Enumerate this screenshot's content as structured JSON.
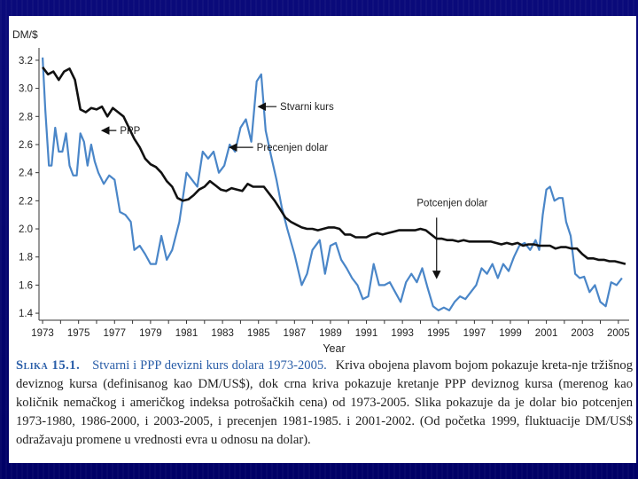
{
  "chart_data": {
    "type": "line",
    "ylabel": "DM/$",
    "xlabel": "Year",
    "ylim": [
      1.35,
      3.25
    ],
    "xlim": [
      1972.8,
      2005.6
    ],
    "yticks": [
      1.4,
      1.6,
      1.8,
      2.0,
      2.2,
      2.4,
      2.6,
      2.8,
      3.0,
      3.2
    ],
    "ytick_labels": [
      "1.4",
      "1.6",
      "1.8",
      "2.0",
      "2.2",
      "2.4",
      "2.6",
      "2.8",
      "3.0",
      "3.2"
    ],
    "xticks": [
      1973,
      1975,
      1977,
      1979,
      1981,
      1983,
      1985,
      1987,
      1989,
      1991,
      1993,
      1995,
      1997,
      1999,
      2001,
      2003,
      2005
    ],
    "xtick_labels": [
      "1973",
      "1975",
      "1977",
      "1979",
      "1981",
      "1983",
      "1985",
      "1987",
      "1989",
      "1991",
      "1993",
      "1995",
      "1997",
      "1999",
      "2001",
      "2003",
      "2005"
    ],
    "series": [
      {
        "name": "Stvarni kurs",
        "color": "#4a86c8",
        "x": [
          1973.0,
          1973.15,
          1973.35,
          1973.5,
          1973.7,
          1973.9,
          1974.1,
          1974.3,
          1974.5,
          1974.7,
          1974.9,
          1975.1,
          1975.3,
          1975.5,
          1975.7,
          1975.9,
          1976.1,
          1976.4,
          1976.7,
          1977.0,
          1977.3,
          1977.6,
          1977.9,
          1978.1,
          1978.4,
          1978.7,
          1979.0,
          1979.3,
          1979.6,
          1979.9,
          1980.2,
          1980.6,
          1981.0,
          1981.3,
          1981.6,
          1981.9,
          1982.2,
          1982.5,
          1982.8,
          1983.1,
          1983.4,
          1983.7,
          1984.0,
          1984.3,
          1984.6,
          1984.9,
          1985.15,
          1985.4,
          1985.7,
          1986.0,
          1986.3,
          1986.6,
          1987.0,
          1987.4,
          1987.7,
          1988.0,
          1988.4,
          1988.7,
          1989.0,
          1989.3,
          1989.6,
          1989.9,
          1990.2,
          1990.5,
          1990.8,
          1991.1,
          1991.4,
          1991.7,
          1992.0,
          1992.3,
          1992.6,
          1992.9,
          1993.2,
          1993.5,
          1993.8,
          1994.1,
          1994.4,
          1994.7,
          1995.0,
          1995.3,
          1995.6,
          1995.9,
          1996.2,
          1996.5,
          1996.8,
          1997.1,
          1997.4,
          1997.7,
          1998.0,
          1998.3,
          1998.6,
          1998.9,
          1999.2,
          1999.5,
          1999.8,
          2000.1,
          2000.4,
          2000.6,
          2000.8,
          2001.0,
          2001.2,
          2001.45,
          2001.7,
          2001.9,
          2002.1,
          2002.35,
          2002.6,
          2002.85,
          2003.1,
          2003.4,
          2003.7,
          2004.0,
          2004.3,
          2004.6,
          2004.9,
          2005.2
        ],
        "y": [
          3.22,
          2.85,
          2.45,
          2.45,
          2.72,
          2.55,
          2.55,
          2.68,
          2.45,
          2.38,
          2.38,
          2.68,
          2.62,
          2.45,
          2.6,
          2.48,
          2.4,
          2.32,
          2.38,
          2.35,
          2.12,
          2.1,
          2.05,
          1.85,
          1.88,
          1.82,
          1.75,
          1.75,
          1.95,
          1.78,
          1.85,
          2.05,
          2.4,
          2.35,
          2.3,
          2.55,
          2.5,
          2.55,
          2.4,
          2.45,
          2.6,
          2.55,
          2.72,
          2.78,
          2.62,
          3.05,
          3.1,
          2.7,
          2.52,
          2.35,
          2.15,
          2.0,
          1.82,
          1.6,
          1.68,
          1.85,
          1.92,
          1.68,
          1.88,
          1.9,
          1.78,
          1.72,
          1.65,
          1.6,
          1.5,
          1.52,
          1.75,
          1.6,
          1.6,
          1.62,
          1.55,
          1.48,
          1.62,
          1.68,
          1.62,
          1.72,
          1.58,
          1.45,
          1.42,
          1.44,
          1.42,
          1.48,
          1.52,
          1.5,
          1.55,
          1.6,
          1.72,
          1.68,
          1.75,
          1.65,
          1.75,
          1.7,
          1.8,
          1.88,
          1.9,
          1.85,
          1.92,
          1.85,
          2.1,
          2.28,
          2.3,
          2.2,
          2.22,
          2.22,
          2.05,
          1.95,
          1.68,
          1.65,
          1.66,
          1.55,
          1.6,
          1.48,
          1.45,
          1.62,
          1.6,
          1.65
        ]
      },
      {
        "name": "PPP",
        "color": "#111111",
        "x": [
          1973.0,
          1973.3,
          1973.6,
          1973.9,
          1974.2,
          1974.5,
          1974.8,
          1975.1,
          1975.4,
          1975.7,
          1976.0,
          1976.3,
          1976.6,
          1976.9,
          1977.2,
          1977.5,
          1977.8,
          1978.1,
          1978.4,
          1978.7,
          1979.0,
          1979.3,
          1979.6,
          1979.9,
          1980.2,
          1980.5,
          1980.8,
          1981.1,
          1981.4,
          1981.7,
          1982.0,
          1982.3,
          1982.6,
          1982.9,
          1983.2,
          1983.5,
          1983.8,
          1984.1,
          1984.4,
          1984.7,
          1985.0,
          1985.3,
          1985.6,
          1985.9,
          1986.2,
          1986.5,
          1986.8,
          1987.1,
          1987.4,
          1987.7,
          1988.0,
          1988.3,
          1988.6,
          1988.9,
          1989.2,
          1989.5,
          1989.8,
          1990.1,
          1990.4,
          1990.7,
          1991.0,
          1991.3,
          1991.6,
          1991.9,
          1992.2,
          1992.5,
          1992.8,
          1993.1,
          1993.4,
          1993.7,
          1994.0,
          1994.3,
          1994.6,
          1994.9,
          1995.2,
          1995.5,
          1995.8,
          1996.1,
          1996.4,
          1996.7,
          1997.0,
          1997.3,
          1997.6,
          1997.9,
          1998.2,
          1998.5,
          1998.8,
          1999.1,
          1999.4,
          1999.7,
          2000.0,
          2000.3,
          2000.6,
          2000.9,
          2001.2,
          2001.5,
          2001.8,
          2002.1,
          2002.4,
          2002.7,
          2003.0,
          2003.3,
          2003.6,
          2003.9,
          2004.2,
          2004.5,
          2004.8,
          2005.1,
          2005.4
        ],
        "y": [
          3.15,
          3.1,
          3.12,
          3.06,
          3.12,
          3.14,
          3.06,
          2.85,
          2.83,
          2.86,
          2.85,
          2.87,
          2.8,
          2.86,
          2.83,
          2.8,
          2.72,
          2.64,
          2.58,
          2.5,
          2.46,
          2.44,
          2.4,
          2.34,
          2.3,
          2.22,
          2.2,
          2.21,
          2.24,
          2.28,
          2.3,
          2.34,
          2.31,
          2.28,
          2.27,
          2.29,
          2.28,
          2.27,
          2.32,
          2.3,
          2.3,
          2.3,
          2.25,
          2.2,
          2.14,
          2.08,
          2.05,
          2.03,
          2.01,
          2.0,
          2.0,
          1.99,
          2.0,
          2.01,
          2.01,
          2.0,
          1.96,
          1.96,
          1.94,
          1.94,
          1.94,
          1.96,
          1.97,
          1.96,
          1.97,
          1.98,
          1.99,
          1.99,
          1.99,
          1.99,
          2.0,
          1.99,
          1.96,
          1.93,
          1.93,
          1.92,
          1.92,
          1.91,
          1.92,
          1.91,
          1.91,
          1.91,
          1.91,
          1.91,
          1.9,
          1.89,
          1.9,
          1.89,
          1.9,
          1.88,
          1.89,
          1.89,
          1.88,
          1.88,
          1.88,
          1.86,
          1.87,
          1.87,
          1.86,
          1.86,
          1.82,
          1.79,
          1.79,
          1.78,
          1.78,
          1.77,
          1.77,
          1.76,
          1.75
        ]
      }
    ],
    "annotations": [
      {
        "text": "PPP",
        "ax": 1976.3,
        "ay": 2.7,
        "tx": 1977.2,
        "ty": 2.7
      },
      {
        "text": "Stvarni kurs",
        "ax": 1985.0,
        "ay": 2.87,
        "tx": 1986.1,
        "ty": 2.87
      },
      {
        "text": "Precenjen dolar",
        "ax": 1983.4,
        "ay": 2.58,
        "tx": 1984.8,
        "ty": 2.58
      },
      {
        "text": "Potcenjen dolar",
        "ax": 1994.9,
        "ay": 1.65,
        "tx": 1993.8,
        "ty": 2.16
      }
    ]
  },
  "caption": {
    "label": "Slika 15.1.",
    "title": "Stvarni i PPP devizni kurs dolara 1973-2005.",
    "text": "Kriva obojena plavom bojom pokazuje kreta-nje tržišnog deviznog kursa (definisanog kao DM/US$), dok crna kriva pokazuje kretanje PPP deviznog kursa (merenog kao količnik nemačkog i američkog indeksa potrošačkih cena) od 1973-2005. Slika pokazuje da je dolar bio potcenjen 1973-1980, 1986-2000, i 2003-2005, i precenjen 1981-1985. i 2001-2002. (Od početka 1999, fluktuacije DM/US$ odražavaju promene u vrednosti evra u odnosu na dolar)."
  }
}
